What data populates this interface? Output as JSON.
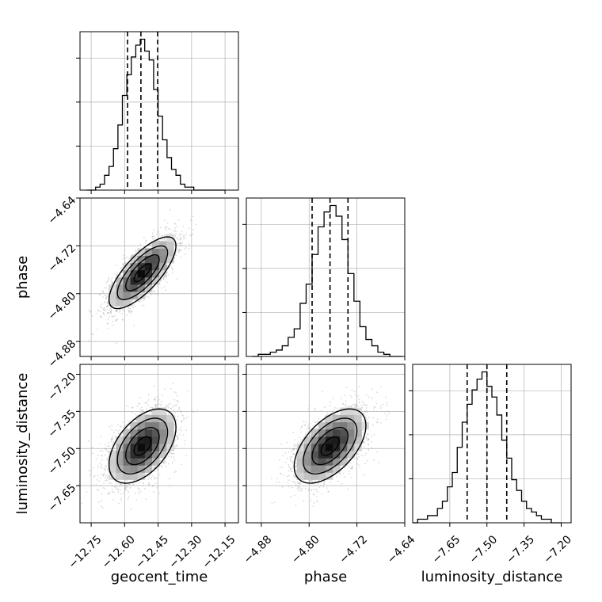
{
  "chart_data": {
    "type": "corner",
    "parameters": [
      {
        "label": "geocent_time",
        "range": [
          -12.8,
          -12.09
        ],
        "ticks": [
          -12.75,
          -12.6,
          -12.45,
          -12.3,
          -12.15
        ],
        "tick_labels": [
          "−12.75",
          "−12.60",
          "−12.45",
          "−12.30",
          "−12.15"
        ],
        "quantiles": [
          -12.587,
          -12.527,
          -12.452
        ],
        "hist_bin_edges": [
          -12.77,
          -12.75,
          -12.73,
          -12.71,
          -12.69,
          -12.67,
          -12.65,
          -12.63,
          -12.61,
          -12.59,
          -12.57,
          -12.55,
          -12.53,
          -12.51,
          -12.49,
          -12.47,
          -12.45,
          -12.43,
          -12.41,
          -12.39,
          -12.37,
          -12.35,
          -12.33,
          -12.31,
          -12.29,
          -12.27,
          -12.25,
          -12.23,
          -12.21,
          -12.19,
          -12.17,
          -12.15
        ],
        "hist_counts": [
          0,
          0,
          1,
          2,
          5,
          8,
          14,
          22,
          32,
          39,
          45,
          49,
          51,
          47,
          44,
          34,
          25,
          17,
          11,
          7,
          5,
          2,
          1,
          1,
          0,
          0,
          0,
          0,
          0,
          0,
          0
        ]
      },
      {
        "label": "phase",
        "range": [
          -4.905,
          -4.64
        ],
        "ticks": [
          -4.88,
          -4.8,
          -4.72,
          -4.64
        ],
        "tick_labels": [
          "−4.88",
          "−4.80",
          "−4.72",
          "−4.64"
        ],
        "quantiles": [
          -4.795,
          -4.765,
          -4.735
        ],
        "hist_bin_edges": [
          -4.895,
          -4.885,
          -4.875,
          -4.865,
          -4.855,
          -4.845,
          -4.835,
          -4.825,
          -4.815,
          -4.805,
          -4.795,
          -4.785,
          -4.775,
          -4.765,
          -4.755,
          -4.745,
          -4.735,
          -4.725,
          -4.715,
          -4.705,
          -4.695,
          -4.685,
          -4.675,
          -4.665,
          -4.655,
          -4.645
        ],
        "hist_counts": [
          0,
          1,
          1,
          2,
          3,
          5,
          9,
          13,
          25,
          34,
          48,
          61,
          68,
          71,
          66,
          55,
          39,
          26,
          14,
          8,
          5,
          2,
          1,
          0,
          0
        ]
      },
      {
        "label": "luminosity_distance",
        "range": [
          -7.8,
          -7.16
        ],
        "ticks": [
          -7.65,
          -7.5,
          -7.35,
          -7.2
        ],
        "tick_labels": [
          "−7.65",
          "−7.50",
          "−7.35",
          "−7.20"
        ],
        "quantiles": [
          -7.58,
          -7.5,
          -7.42
        ],
        "hist_bin_edges": [
          -7.8,
          -7.78,
          -7.76,
          -7.74,
          -7.72,
          -7.7,
          -7.68,
          -7.66,
          -7.64,
          -7.62,
          -7.6,
          -7.58,
          -7.56,
          -7.54,
          -7.52,
          -7.5,
          -7.48,
          -7.46,
          -7.44,
          -7.42,
          -7.4,
          -7.38,
          -7.36,
          -7.34,
          -7.32,
          -7.3,
          -7.28,
          -7.26,
          -7.24,
          -7.22,
          -7.2
        ],
        "hist_counts": [
          0,
          1,
          1,
          2,
          2,
          4,
          6,
          10,
          14,
          21,
          28,
          33,
          37,
          40,
          42,
          38,
          35,
          30,
          23,
          18,
          12,
          9,
          6,
          4,
          3,
          2,
          1,
          1,
          0,
          0
        ]
      }
    ],
    "pairs": [
      {
        "x": 0,
        "y": 1,
        "mean": [
          -12.52,
          -4.765
        ],
        "std": [
          0.075,
          0.03
        ],
        "correlation": 0.75
      },
      {
        "x": 0,
        "y": 2,
        "mean": [
          -12.52,
          -7.49
        ],
        "std": [
          0.075,
          0.075
        ],
        "correlation": 0.5
      },
      {
        "x": 1,
        "y": 2,
        "mean": [
          -4.765,
          -7.49
        ],
        "std": [
          0.03,
          0.075
        ],
        "correlation": 0.55
      }
    ],
    "contour_levels_sigma": [
      0.5,
      1.0,
      1.5,
      2.0
    ],
    "grid": true,
    "colors": {
      "line": "#000000",
      "samples": "#999999",
      "grid": "#b0b0b0"
    }
  }
}
